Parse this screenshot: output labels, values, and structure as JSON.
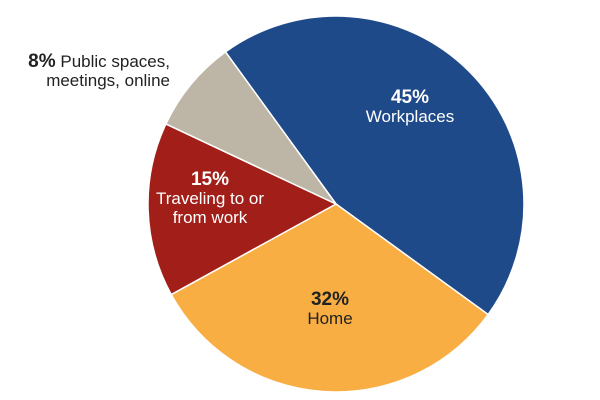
{
  "chart_data": {
    "type": "pie",
    "categories": [
      "Workplaces",
      "Home",
      "Traveling to or from work",
      "Public spaces, meetings, online"
    ],
    "values": [
      45,
      32,
      15,
      8
    ],
    "value_labels": [
      "45%",
      "32%",
      "15%",
      "8%"
    ],
    "colors": [
      "#1f4a8a",
      "#f8ae42",
      "#a11f18",
      "#bdb6a6"
    ]
  }
}
